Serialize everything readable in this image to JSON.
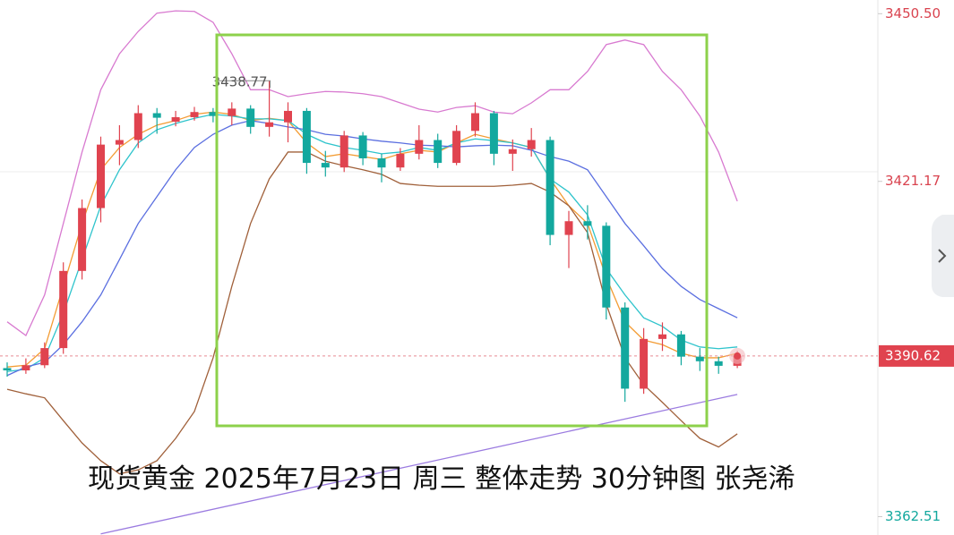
{
  "chart_data": {
    "type": "candlestick",
    "title": "现货黄金 2025年7月23日 周三 整体走势 30分钟图 张尧浠",
    "up_color": "#e0434f",
    "down_color": "#13a89e",
    "open": [
      3388.5,
      3388.1,
      3389.0,
      3392.0,
      3405.5,
      3416.5,
      3427.6,
      3428.4,
      3433.1,
      3431.6,
      3432.4,
      3433.3,
      3432.6,
      3433.9,
      3430.7,
      3431.5,
      3433.5,
      3424.4,
      3423.6,
      3429.2,
      3425.2,
      3423.6,
      3426.0,
      3428.4,
      3424.4,
      3430.0,
      3433.1,
      3426.0,
      3426.8,
      3428.4,
      3411.8,
      3414.2,
      3413.4,
      3399.1,
      3384.9,
      3393.6,
      3394.4,
      3390.5,
      3389.7,
      3388.9
    ],
    "high": [
      3389.5,
      3390.2,
      3393.0,
      3407.0,
      3418.0,
      3429.0,
      3431.0,
      3434.5,
      3434.0,
      3433.5,
      3434.2,
      3434.0,
      3435.0,
      3434.5,
      3438.77,
      3435.0,
      3434.0,
      3426.5,
      3430.0,
      3429.8,
      3426.0,
      3427.0,
      3431.0,
      3429.5,
      3431.0,
      3435.0,
      3433.5,
      3428.5,
      3430.5,
      3429.0,
      3416.0,
      3417.0,
      3414.0,
      3400.0,
      3395.5,
      3396.5,
      3395.0,
      3392.0,
      3390.5,
      3391.5
    ],
    "low": [
      3387.0,
      3387.5,
      3388.5,
      3391.0,
      3404.0,
      3414.0,
      3424.0,
      3427.0,
      3429.5,
      3430.8,
      3431.8,
      3431.5,
      3431.0,
      3429.5,
      3429.0,
      3428.0,
      3422.5,
      3422.0,
      3422.8,
      3424.0,
      3421.0,
      3423.0,
      3425.0,
      3423.5,
      3424.0,
      3429.0,
      3424.0,
      3423.0,
      3425.5,
      3410.0,
      3406.0,
      3411.0,
      3397.0,
      3382.6,
      3384.0,
      3391.5,
      3389.0,
      3388.0,
      3387.5,
      3388.5
    ],
    "close": [
      3388.1,
      3389.0,
      3392.0,
      3405.5,
      3416.5,
      3427.6,
      3428.4,
      3433.1,
      3432.3,
      3432.4,
      3433.3,
      3432.6,
      3433.9,
      3430.7,
      3431.5,
      3433.5,
      3424.4,
      3423.6,
      3429.2,
      3425.2,
      3423.6,
      3426.0,
      3428.4,
      3424.4,
      3430.0,
      3433.1,
      3426.0,
      3426.8,
      3428.4,
      3411.8,
      3414.2,
      3413.4,
      3399.1,
      3384.9,
      3393.6,
      3394.4,
      3390.5,
      3389.7,
      3388.9,
      3390.62
    ],
    "lines": [
      {
        "color": "#f39c34",
        "values": [
          3388.7,
          3389.0,
          3391.9,
          3402.8,
          3413.8,
          3423.2,
          3427.1,
          3429.4,
          3431.0,
          3431.8,
          3432.9,
          3433.3,
          3432.9,
          3431.8,
          3432.2,
          3431.8,
          3427.9,
          3425.5,
          3426.0,
          3425.5,
          3425.0,
          3426.0,
          3426.6,
          3426.3,
          3427.9,
          3429.4,
          3428.6,
          3427.9,
          3427.1,
          3421.6,
          3416.9,
          3413.8,
          3404.4,
          3396.6,
          3393.4,
          3392.6,
          3391.1,
          3390.3,
          3390.3,
          3391.1
        ]
      },
      {
        "color": "#2fc4cc",
        "values": [
          3387.9,
          3388.3,
          3390.3,
          3398.1,
          3407.5,
          3416.9,
          3423.2,
          3427.9,
          3430.2,
          3431.3,
          3432.2,
          3432.9,
          3432.6,
          3432.1,
          3432.1,
          3431.8,
          3429.4,
          3427.9,
          3427.1,
          3426.6,
          3426.0,
          3426.3,
          3427.1,
          3426.6,
          3427.9,
          3428.6,
          3428.3,
          3427.9,
          3427.1,
          3421.6,
          3419.3,
          3415.3,
          3405.9,
          3401.3,
          3397.3,
          3395.8,
          3393.4,
          3392.2,
          3391.9,
          3392.2
        ]
      },
      {
        "color": "#5b6fe0",
        "values": [
          3387.2,
          3388.7,
          3389.5,
          3392.6,
          3396.6,
          3401.3,
          3407.5,
          3413.8,
          3418.5,
          3423.2,
          3427.1,
          3429.4,
          3431.0,
          3431.8,
          3431.3,
          3430.7,
          3430.2,
          3429.4,
          3429.1,
          3428.6,
          3428.2,
          3427.9,
          3427.5,
          3427.4,
          3427.2,
          3427.4,
          3427.5,
          3427.4,
          3426.6,
          3425.5,
          3424.7,
          3423.2,
          3418.5,
          3413.8,
          3409.9,
          3405.9,
          3402.8,
          3400.5,
          3398.9,
          3397.3
        ]
      },
      {
        "color": "#d87ad0",
        "values": [
          3396.6,
          3394.2,
          3401.3,
          3413.8,
          3426.3,
          3437.2,
          3443.5,
          3447.4,
          3450.6,
          3451.0,
          3450.9,
          3449.0,
          3443.5,
          3437.2,
          3437.2,
          3436.0,
          3436.5,
          3436.9,
          3436.8,
          3436.5,
          3436.0,
          3434.9,
          3433.8,
          3433.3,
          3434.1,
          3434.4,
          3433.3,
          3433.0,
          3434.9,
          3437.2,
          3437.2,
          3440.4,
          3445.1,
          3445.9,
          3445.1,
          3440.4,
          3437.2,
          3432.6,
          3426.3,
          3417.7
        ]
      },
      {
        "color": "#a0603a",
        "values": [
          3384.8,
          3384.0,
          3383.3,
          3379.3,
          3375.4,
          3372.3,
          3370.0,
          3370.7,
          3372.3,
          3376.2,
          3380.9,
          3390.3,
          3402.8,
          3413.8,
          3421.6,
          3426.3,
          3426.3,
          3424.7,
          3423.9,
          3423.2,
          3422.4,
          3420.8,
          3420.5,
          3420.3,
          3420.3,
          3420.3,
          3420.3,
          3420.5,
          3420.8,
          3419.3,
          3416.9,
          3412.2,
          3399.7,
          3390.3,
          3385.6,
          3382.5,
          3379.3,
          3376.2,
          3374.7,
          3377.0
        ]
      }
    ],
    "trend_line": {
      "color": "#9b7be0",
      "x": [
        5,
        39
      ],
      "values": [
        3359.5,
        3383.9
      ]
    },
    "annotation": "3438.77",
    "annotation_index": 14,
    "ylim": [
      3359.3,
      3452.9
    ],
    "yticks": [
      {
        "value": 3450.5,
        "label": "3450.50"
      },
      {
        "value": 3421.17,
        "label": "3421.17"
      },
      {
        "value": 3362.51,
        "label": "3362.51"
      }
    ],
    "ytick_colors": [
      "#d9434f",
      "#d9434f",
      "#13a89e"
    ],
    "last_price": {
      "value": 3390.62,
      "label": "3390.62"
    }
  }
}
